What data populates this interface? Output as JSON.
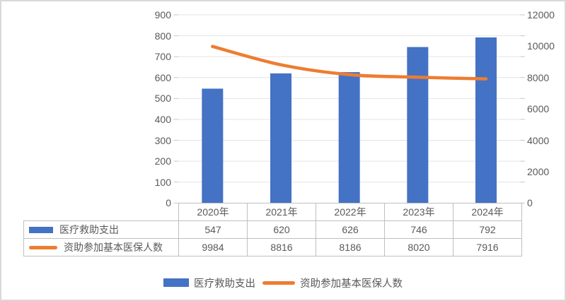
{
  "window": {
    "background": "#FFFFFF",
    "border_color": "#D9D9D9",
    "text_color": "#595959"
  },
  "chart_data": {
    "type": "combo-bar-line",
    "title": "",
    "categories": [
      "2020年",
      "2021年",
      "2022年",
      "2023年",
      "2024年"
    ],
    "series": [
      {
        "name": "医疗救助支出",
        "type": "bar",
        "axis": "left",
        "color": "#4472C4",
        "values": [
          547,
          620,
          626,
          746,
          792
        ]
      },
      {
        "name": "资助参加基本医保人数",
        "type": "line",
        "axis": "right",
        "color": "#ED7D31",
        "values": [
          9984,
          8816,
          8186,
          8020,
          7916
        ]
      }
    ],
    "left_axis": {
      "min": 0,
      "max": 900,
      "step": 100,
      "tick_labels": [
        "0",
        "100",
        "200",
        "300",
        "400",
        "500",
        "600",
        "700",
        "800",
        "900"
      ]
    },
    "right_axis": {
      "min": 0,
      "max": 12000,
      "step": 2000,
      "tick_labels": [
        "0",
        "2000",
        "4000",
        "6000",
        "8000",
        "10000",
        "12000"
      ]
    },
    "gridlines": true,
    "gridline_color": "#E4E4E4",
    "tick_color": "#C6C6C6",
    "legend_position": "bottom",
    "data_table": {
      "shown": true,
      "show_legend_keys": true,
      "border_color": "#BFBFBF"
    }
  }
}
